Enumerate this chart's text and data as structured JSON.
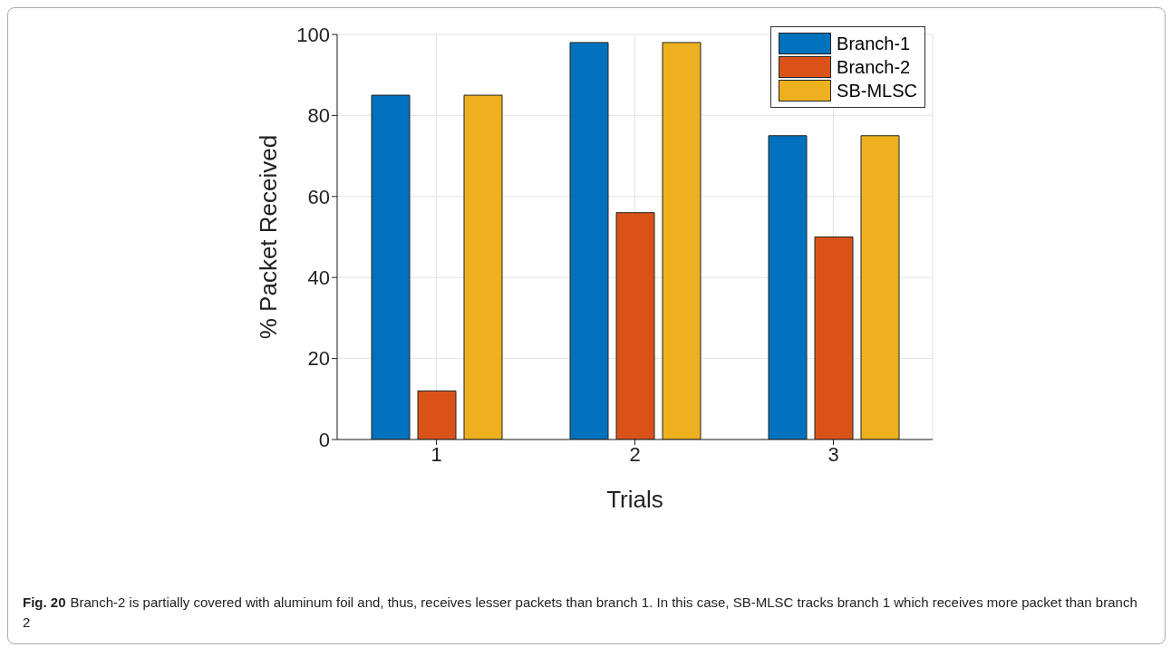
{
  "chart_data": {
    "type": "bar",
    "xlabel": "Trials",
    "ylabel": "% Packet Received",
    "categories": [
      "1",
      "2",
      "3"
    ],
    "series": [
      {
        "name": "Branch-1",
        "color": "#0072bd",
        "values": [
          85,
          98,
          75
        ]
      },
      {
        "name": "Branch-2",
        "color": "#d95319",
        "values": [
          12,
          56,
          50
        ]
      },
      {
        "name": "SB-MLSC",
        "color": "#edb120",
        "values": [
          85,
          98,
          75
        ]
      }
    ],
    "ylim": [
      0,
      100
    ],
    "yticks": [
      0,
      20,
      40,
      60,
      80,
      100
    ],
    "grid": true,
    "legend": "top right",
    "annotations": [
      "Fig. 20",
      "Branch-2 is partially covered with aluminum foil and, thus, receives lesser packets than branch 1. In this case, SB-MLSC tracks branch 1 which receives more packet than branch 2"
    ]
  }
}
